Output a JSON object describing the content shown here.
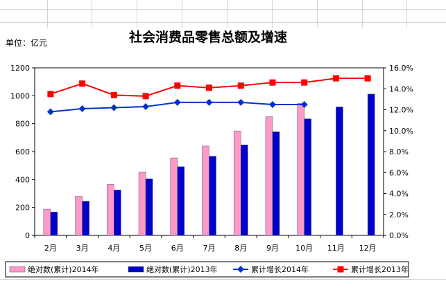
{
  "chart_data": {
    "type": "bar",
    "title": "社会消费品零售总额及增速",
    "unit_label": "单位：亿元",
    "categories": [
      "2月",
      "3月",
      "4月",
      "5月",
      "6月",
      "7月",
      "8月",
      "9月",
      "10月",
      "11月",
      "12月"
    ],
    "y_left": {
      "ylim": [
        0,
        1200
      ],
      "ticks": [
        "0",
        "200",
        "400",
        "600",
        "800",
        "1000",
        "1200"
      ]
    },
    "y_right": {
      "ylim": [
        0,
        16
      ],
      "ticks": [
        "0.0%",
        "2.0%",
        "4.0%",
        "6.0%",
        "8.0%",
        "10.0%",
        "12.0%",
        "14.0%",
        "16.0%"
      ]
    },
    "grid": false,
    "legend_position": "bottom",
    "series": [
      {
        "name": "绝对数(累计)2014年",
        "kind": "bar",
        "axis": "left",
        "color": "#ff99cc",
        "values": [
          188,
          280,
          365,
          455,
          555,
          640,
          748,
          850,
          945,
          null,
          null
        ]
      },
      {
        "name": "绝对数(累计)2013年",
        "kind": "bar",
        "axis": "left",
        "color": "#0000cc",
        "values": [
          167,
          245,
          325,
          405,
          492,
          567,
          648,
          742,
          835,
          920,
          1012
        ]
      },
      {
        "name": "累计增长2014年",
        "kind": "line",
        "marker": "diamond",
        "axis": "right",
        "color": "#0033cc",
        "values": [
          11.8,
          12.1,
          12.2,
          12.3,
          12.7,
          12.7,
          12.7,
          12.5,
          12.5,
          null,
          null
        ]
      },
      {
        "name": "累计增长2013年",
        "kind": "line",
        "marker": "square",
        "axis": "right",
        "color": "#ff0000",
        "values": [
          13.5,
          14.5,
          13.4,
          13.3,
          14.3,
          14.1,
          14.3,
          14.6,
          14.6,
          15.0,
          15.0
        ]
      }
    ]
  }
}
